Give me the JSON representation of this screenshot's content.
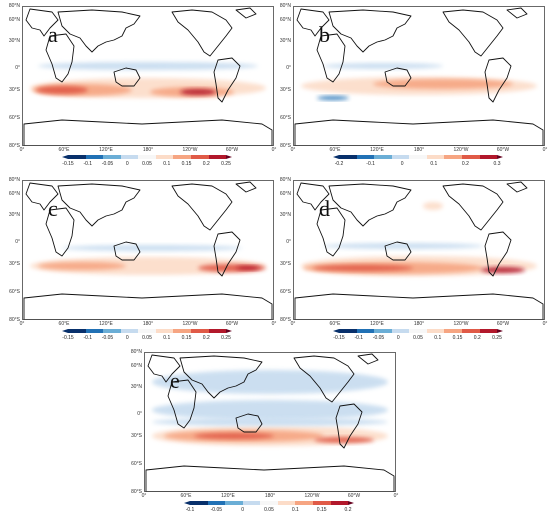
{
  "lat_labels": [
    "80°N",
    "60°N",
    "30°N",
    "0°",
    "30°S",
    "60°S",
    "80°S"
  ],
  "lon_labels": [
    "0°",
    "60°E",
    "120°E",
    "180°",
    "120°W",
    "60°W",
    "0°"
  ],
  "colors": {
    "deep_blue": "#08306b",
    "blue": "#2171b5",
    "mid_blue": "#6baed6",
    "light_blue": "#c6dbef",
    "white": "#f7f7f7",
    "light_red": "#fcdcc8",
    "salmon": "#f6a582",
    "red": "#e05a47",
    "dark_red": "#b2182b",
    "deep_red": "#67001f"
  },
  "panels": [
    {
      "label": "a",
      "colorbar_ticks": [
        "-0.15",
        "-0.1",
        "-0.05",
        "0",
        "0.05",
        "0.1",
        "0.15",
        "0.2",
        "0.25"
      ]
    },
    {
      "label": "b",
      "colorbar_ticks": [
        "-0.2",
        "-0.1",
        "0",
        "0.1",
        "0.2",
        "0.3"
      ]
    },
    {
      "label": "c",
      "colorbar_ticks": [
        "-0.15",
        "-0.1",
        "-0.05",
        "0",
        "0.05",
        "0.1",
        "0.15",
        "0.2",
        "0.25"
      ]
    },
    {
      "label": "d",
      "colorbar_ticks": [
        "-0.15",
        "-0.1",
        "-0.05",
        "0",
        "0.05",
        "0.1",
        "0.15",
        "0.2",
        "0.25"
      ]
    },
    {
      "label": "e",
      "colorbar_ticks": [
        "-0.1",
        "-0.05",
        "0",
        "0.05",
        "0.1",
        "0.15",
        "0.2"
      ]
    }
  ]
}
